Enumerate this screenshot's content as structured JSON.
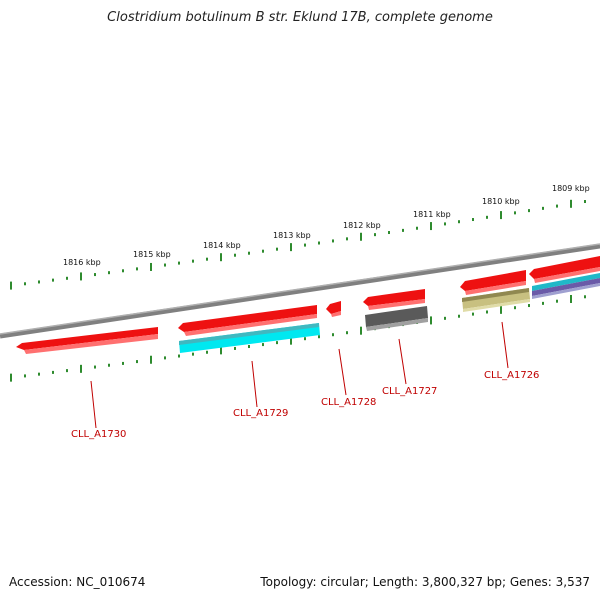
{
  "title": "Clostridium botulinum B str. Eklund 17B, complete genome",
  "accession": "Accession: NC_010674",
  "topology": "Topology: circular; Length: 3,800,327 bp; Genes: 3,537",
  "kbp_labels": [
    "1816 kbp",
    "1815 kbp",
    "1814 kbp",
    "1813 kbp",
    "1812 kbp",
    "1811 kbp",
    "1810 kbp",
    "1809 kbp"
  ],
  "gene_labels": [
    "CLL_A1730",
    "CLL_A1729",
    "CLL_A1728",
    "CLL_A1727",
    "CLL_A1726"
  ],
  "colors": {
    "backbone": "#808080",
    "tick": "#2e8b2e",
    "gene_red": "#ee1111",
    "gene_cyan": "#00e8f0",
    "gene_gray": "#5a5a5a",
    "gene_olive": "#c8c080",
    "gene_purple": "#6a5aa8",
    "label": "#c00000"
  }
}
